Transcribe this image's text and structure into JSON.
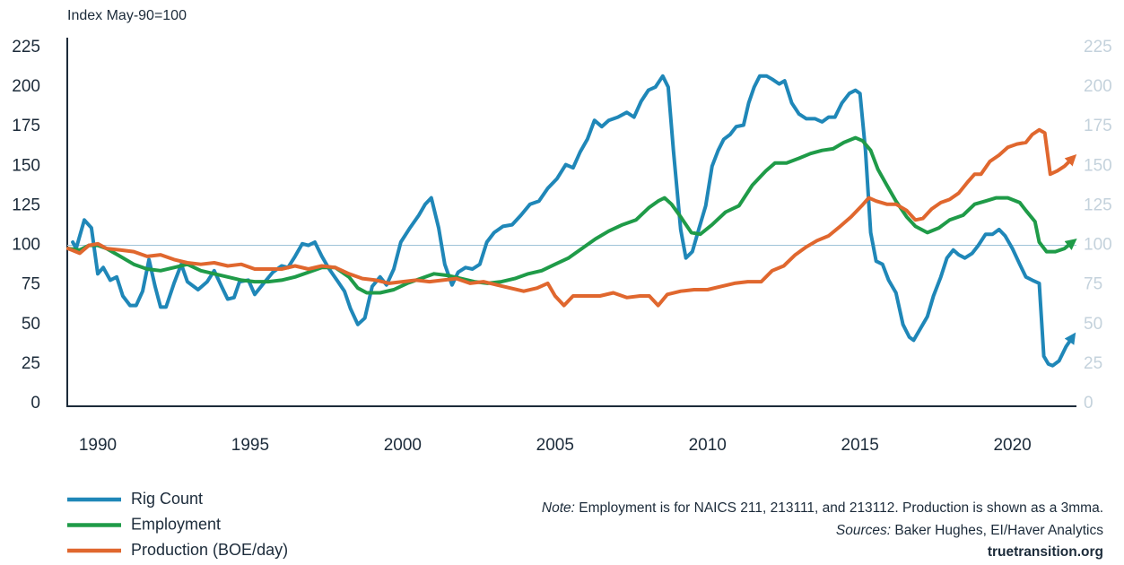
{
  "chart_data": {
    "type": "line",
    "axis_label": "Index May-90=100",
    "xlim": [
      1989,
      2022.1
    ],
    "xticks": [
      1990,
      1995,
      2000,
      2005,
      2010,
      2015,
      2020
    ],
    "ylim": [
      0,
      225
    ],
    "yticks": [
      0,
      25,
      50,
      75,
      100,
      125,
      150,
      175,
      200,
      225
    ],
    "y2lim": [
      0,
      225
    ],
    "y2ticks": [
      0,
      25,
      50,
      75,
      100,
      125,
      150,
      175,
      200,
      225
    ],
    "reference_line": 100,
    "series": [
      {
        "name": "Rig Count",
        "color": "#1f87b8",
        "x": [
          1989.18,
          1989.29,
          1989.56,
          1989.79,
          1990.0,
          1990.18,
          1990.41,
          1990.62,
          1990.82,
          1991.06,
          1991.26,
          1991.47,
          1991.68,
          1991.88,
          1992.06,
          1992.24,
          1992.5,
          1992.74,
          1992.94,
          1993.29,
          1993.59,
          1993.82,
          1994.06,
          1994.26,
          1994.47,
          1994.65,
          1994.94,
          1995.15,
          1995.44,
          1995.74,
          1996.03,
          1996.24,
          1996.47,
          1996.71,
          1996.91,
          1997.12,
          1997.35,
          1997.59,
          1997.88,
          1998.09,
          1998.29,
          1998.53,
          1998.76,
          1999.0,
          1999.26,
          1999.47,
          1999.71,
          1999.94,
          2000.24,
          2000.53,
          2000.74,
          2000.94,
          2001.18,
          2001.38,
          2001.62,
          2001.82,
          2002.06,
          2002.29,
          2002.53,
          2002.76,
          2003.0,
          2003.29,
          2003.59,
          2003.88,
          2004.18,
          2004.47,
          2004.76,
          2005.06,
          2005.35,
          2005.59,
          2005.82,
          2006.06,
          2006.29,
          2006.53,
          2006.76,
          2007.06,
          2007.35,
          2007.59,
          2007.82,
          2008.06,
          2008.29,
          2008.53,
          2008.71,
          2008.88,
          2009.12,
          2009.29,
          2009.5,
          2009.71,
          2009.94,
          2010.15,
          2010.35,
          2010.53,
          2010.74,
          2010.94,
          2011.18,
          2011.35,
          2011.53,
          2011.71,
          2011.94,
          2012.12,
          2012.35,
          2012.53,
          2012.76,
          2013.0,
          2013.24,
          2013.53,
          2013.76,
          2013.97,
          2014.18,
          2014.41,
          2014.65,
          2014.85,
          2015.0,
          2015.18,
          2015.35,
          2015.53,
          2015.74,
          2015.94,
          2016.18,
          2016.41,
          2016.62,
          2016.76,
          2017.0,
          2017.21,
          2017.41,
          2017.65,
          2017.85,
          2018.06,
          2018.24,
          2018.44,
          2018.68,
          2018.88,
          2019.12,
          2019.35,
          2019.56,
          2019.76,
          2020.0,
          2020.24,
          2020.44,
          2020.65,
          2020.88,
          2021.03,
          2021.18,
          2021.32,
          2021.53,
          2021.76,
          2021.97
        ],
        "values": [
          102,
          98,
          116,
          111,
          82,
          86,
          78,
          80,
          68,
          62,
          62,
          71,
          91,
          74,
          61,
          61,
          76,
          88,
          77,
          72,
          77,
          84,
          74,
          66,
          67,
          77,
          78,
          69,
          76,
          83,
          87,
          86,
          93,
          101,
          100,
          102,
          93,
          85,
          77,
          71,
          60,
          50,
          54,
          74,
          80,
          75,
          85,
          102,
          111,
          119,
          126,
          130,
          111,
          88,
          75,
          83,
          86,
          85,
          88,
          102,
          108,
          112,
          113,
          119,
          126,
          128,
          136,
          142,
          151,
          149,
          159,
          167,
          179,
          175,
          179,
          181,
          184,
          181,
          191,
          198,
          200,
          207,
          200,
          160,
          110,
          92,
          96,
          110,
          125,
          150,
          160,
          167,
          170,
          175,
          176,
          190,
          200,
          207,
          207,
          205,
          202,
          204,
          190,
          183,
          180,
          180,
          178,
          181,
          181,
          190,
          196,
          198,
          196,
          160,
          108,
          90,
          88,
          78,
          70,
          50,
          42,
          40,
          48,
          55,
          68,
          80,
          92,
          97,
          94,
          92,
          95,
          100,
          107,
          107,
          110,
          106,
          98,
          88,
          80,
          78,
          76,
          30,
          25,
          24,
          27,
          36,
          42
        ]
      },
      {
        "name": "Employment",
        "color": "#1f9b48",
        "x": [
          1989.03,
          1989.41,
          1989.71,
          1990.0,
          1990.29,
          1990.74,
          1991.18,
          1991.62,
          1992.06,
          1992.5,
          1992.94,
          1993.38,
          1993.82,
          1994.26,
          1994.71,
          1995.15,
          1995.59,
          1996.03,
          1996.47,
          1996.91,
          1997.35,
          1997.79,
          1998.24,
          1998.53,
          1998.82,
          1999.26,
          1999.71,
          2000.15,
          2000.59,
          2001.03,
          2001.47,
          2001.91,
          2002.35,
          2002.79,
          2003.24,
          2003.68,
          2004.12,
          2004.56,
          2005.0,
          2005.44,
          2005.88,
          2006.32,
          2006.76,
          2007.21,
          2007.65,
          2008.09,
          2008.38,
          2008.59,
          2008.82,
          2009.12,
          2009.47,
          2009.76,
          2010.15,
          2010.59,
          2011.03,
          2011.47,
          2011.91,
          2012.21,
          2012.59,
          2013.0,
          2013.38,
          2013.76,
          2014.12,
          2014.47,
          2014.85,
          2015.09,
          2015.35,
          2015.59,
          2015.88,
          2016.18,
          2016.53,
          2016.82,
          2017.21,
          2017.59,
          2017.94,
          2018.38,
          2018.76,
          2019.12,
          2019.47,
          2019.85,
          2020.24,
          2020.44,
          2020.74,
          2020.88,
          2021.12,
          2021.41,
          2021.71,
          2021.97
        ],
        "values": [
          98,
          97,
          100,
          100,
          98,
          93,
          88,
          85,
          84,
          86,
          88,
          84,
          82,
          80,
          78,
          77,
          77,
          78,
          80,
          83,
          86,
          86,
          80,
          73,
          70,
          70,
          72,
          76,
          79,
          82,
          81,
          79,
          77,
          76,
          77,
          79,
          82,
          84,
          88,
          92,
          98,
          104,
          109,
          113,
          116,
          124,
          128,
          130,
          126,
          118,
          108,
          107,
          113,
          121,
          125,
          138,
          147,
          152,
          152,
          155,
          158,
          160,
          161,
          165,
          168,
          166,
          160,
          148,
          138,
          128,
          118,
          112,
          108,
          111,
          116,
          119,
          126,
          128,
          130,
          130,
          127,
          122,
          115,
          102,
          96,
          96,
          98,
          102
        ]
      },
      {
        "name": "Production (BOE/day)",
        "color": "#e0672e",
        "x": [
          1989.03,
          1989.41,
          1989.71,
          1990.0,
          1990.29,
          1990.74,
          1991.18,
          1991.62,
          1992.06,
          1992.5,
          1992.94,
          1993.38,
          1993.82,
          1994.26,
          1994.71,
          1995.15,
          1995.59,
          1996.03,
          1996.47,
          1996.91,
          1997.35,
          1997.79,
          1998.24,
          1998.68,
          1999.12,
          1999.56,
          2000.0,
          2000.44,
          2000.88,
          2001.32,
          2001.76,
          2002.21,
          2002.65,
          2003.09,
          2003.53,
          2003.97,
          2004.41,
          2004.76,
          2005.0,
          2005.29,
          2005.59,
          2006.03,
          2006.47,
          2006.91,
          2007.35,
          2007.79,
          2008.09,
          2008.38,
          2008.68,
          2009.12,
          2009.56,
          2010.0,
          2010.44,
          2010.88,
          2011.32,
          2011.76,
          2012.12,
          2012.5,
          2012.88,
          2013.24,
          2013.59,
          2013.97,
          2014.35,
          2014.71,
          2015.06,
          2015.29,
          2015.53,
          2015.88,
          2016.18,
          2016.53,
          2016.82,
          2017.06,
          2017.35,
          2017.65,
          2017.94,
          2018.24,
          2018.53,
          2018.76,
          2018.97,
          2019.26,
          2019.56,
          2019.85,
          2020.15,
          2020.44,
          2020.65,
          2020.88,
          2021.06,
          2021.24,
          2021.47,
          2021.71,
          2021.97
        ],
        "values": [
          98,
          95,
          100,
          101,
          98,
          97,
          96,
          93,
          94,
          91,
          89,
          88,
          89,
          87,
          88,
          85,
          85,
          85,
          87,
          85,
          87,
          86,
          82,
          79,
          78,
          76,
          77,
          78,
          77,
          78,
          79,
          76,
          77,
          75,
          73,
          71,
          73,
          76,
          68,
          62,
          68,
          68,
          68,
          70,
          67,
          68,
          68,
          62,
          69,
          71,
          72,
          72,
          74,
          76,
          77,
          77,
          84,
          87,
          94,
          99,
          103,
          106,
          112,
          118,
          125,
          130,
          128,
          126,
          126,
          122,
          116,
          117,
          123,
          127,
          129,
          133,
          140,
          145,
          145,
          153,
          157,
          162,
          164,
          165,
          170,
          173,
          171,
          145,
          147,
          150,
          155
        ]
      }
    ],
    "legend": "bottom-left",
    "note_label": "Note:",
    "note": " Employment is for NAICS 211, 213111, and 213112. Production is shown as a 3mma.",
    "sources_label": "Sources:",
    "sources": " Baker Hughes, EI/Haver Analytics",
    "website": "truetransition.org"
  }
}
